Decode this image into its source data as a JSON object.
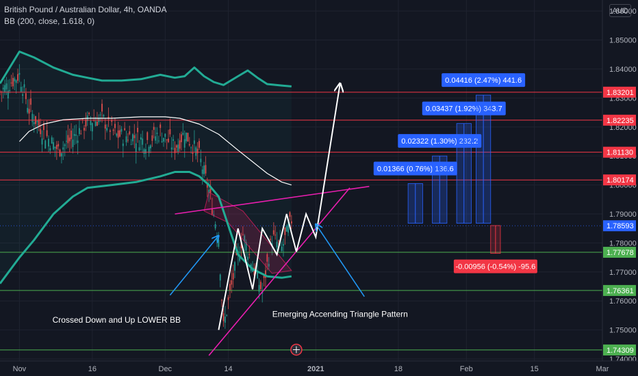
{
  "header": {
    "title": "British Pound / Australian Dollar, 4h, OANDA",
    "indicator": "BB (200, close, 1.618, 0)"
  },
  "price_axis": {
    "currency": "AUD"
  },
  "chart_data": {
    "type": "line",
    "instrument": "British Pound / Australian Dollar, 4h, OANDA",
    "indicator": "BB (200, close, 1.618, 0)",
    "y_ticks": [
      1.86,
      1.85,
      1.84,
      1.83,
      1.82,
      1.81,
      1.8,
      1.79,
      1.78,
      1.77,
      1.76,
      1.75,
      1.74
    ],
    "y_tick_labels": [
      "1.86000",
      "1.85000",
      "1.84000",
      "1.83000",
      "1.82000",
      "1.81000",
      "1.80000",
      "1.79000",
      "1.78000",
      "1.77000",
      "1.76000",
      "1.75000",
      "1.74000"
    ],
    "ylim": [
      1.7393,
      1.8638
    ],
    "x_ticks": [
      {
        "label": "Nov",
        "date": "2020-11-01"
      },
      {
        "label": "16",
        "date": "2020-11-16"
      },
      {
        "label": "Dec",
        "date": "2020-12-01"
      },
      {
        "label": "14",
        "date": "2020-12-14"
      },
      {
        "label": "2021",
        "date": "2021-01-01"
      },
      {
        "label": "18",
        "date": "2021-01-18"
      },
      {
        "label": "Feb",
        "date": "2021-02-01"
      },
      {
        "label": "15",
        "date": "2021-02-15"
      },
      {
        "label": "Mar",
        "date": "2021-03-01"
      }
    ],
    "xlim": [
      "2020-10-28",
      "2021-03-01"
    ],
    "grid": true,
    "current_price": {
      "value": 1.78593,
      "label": "1.78593",
      "color": "#2962ff"
    },
    "horizontal_levels": [
      {
        "value": 1.83201,
        "label": "1.83201",
        "color": "#f23645"
      },
      {
        "value": 1.82235,
        "label": "1.82235",
        "color": "#f23645"
      },
      {
        "value": 1.8113,
        "label": "1.81130",
        "color": "#f23645"
      },
      {
        "value": 1.80174,
        "label": "1.80174",
        "color": "#f23645"
      },
      {
        "value": 1.77678,
        "label": "1.77678",
        "color": "#4caf50"
      },
      {
        "value": 1.76361,
        "label": "1.76361",
        "color": "#4caf50"
      },
      {
        "value": 1.74309,
        "label": "1.74309",
        "color": "#4caf50"
      }
    ],
    "series": [
      {
        "color": "#22ab94",
        "points": [
          [
            "2020-10-28",
            1.835
          ],
          [
            "2020-11-01",
            1.846
          ],
          [
            "2020-11-04",
            1.844
          ],
          [
            "2020-11-08",
            1.8405
          ],
          [
            "2020-11-12",
            1.838
          ],
          [
            "2020-11-15",
            1.837
          ],
          [
            "2020-11-18",
            1.836
          ],
          [
            "2020-11-22",
            1.836
          ],
          [
            "2020-11-26",
            1.8365
          ],
          [
            "2020-11-30",
            1.838
          ],
          [
            "2020-12-03",
            1.837
          ],
          [
            "2020-12-05",
            1.8375
          ],
          [
            "2020-12-07",
            1.8405
          ],
          [
            "2020-12-09",
            1.8375
          ],
          [
            "2020-12-11",
            1.8355
          ],
          [
            "2020-12-13",
            1.8345
          ],
          [
            "2020-12-16",
            1.8375
          ],
          [
            "2020-12-18",
            1.8395
          ],
          [
            "2020-12-20",
            1.837
          ],
          [
            "2020-12-22",
            1.8348
          ],
          [
            "2020-12-25",
            1.8343
          ],
          [
            "2020-12-27",
            1.834
          ]
        ]
      },
      {
        "color": "#ffffff",
        "points": [
          [
            "2020-11-01",
            1.815
          ],
          [
            "2020-11-03",
            1.8185
          ],
          [
            "2020-11-06",
            1.821
          ],
          [
            "2020-11-10",
            1.8225
          ],
          [
            "2020-11-15",
            1.823
          ],
          [
            "2020-11-20",
            1.823
          ],
          [
            "2020-11-26",
            1.8235
          ],
          [
            "2020-12-01",
            1.8235
          ],
          [
            "2020-12-04",
            1.823
          ],
          [
            "2020-12-08",
            1.821
          ],
          [
            "2020-12-12",
            1.8175
          ],
          [
            "2020-12-16",
            1.812
          ],
          [
            "2020-12-19",
            1.808
          ],
          [
            "2020-12-22",
            1.804
          ],
          [
            "2020-12-25",
            1.801
          ],
          [
            "2020-12-27",
            1.8
          ]
        ]
      },
      {
        "color": "#22ab94",
        "points": [
          [
            "2020-10-28",
            1.766
          ],
          [
            "2020-11-01",
            1.775
          ],
          [
            "2020-11-04",
            1.781
          ],
          [
            "2020-11-08",
            1.79
          ],
          [
            "2020-11-12",
            1.796
          ],
          [
            "2020-11-15",
            1.799
          ],
          [
            "2020-11-20",
            1.8
          ],
          [
            "2020-11-25",
            1.801
          ],
          [
            "2020-11-30",
            1.803
          ],
          [
            "2020-12-03",
            1.8045
          ],
          [
            "2020-12-06",
            1.8045
          ],
          [
            "2020-12-08",
            1.803
          ],
          [
            "2020-12-10",
            1.8
          ],
          [
            "2020-12-12",
            1.796
          ],
          [
            "2020-12-14",
            1.786
          ],
          [
            "2020-12-16",
            1.776
          ],
          [
            "2020-12-19",
            1.771
          ],
          [
            "2020-12-22",
            1.7685
          ],
          [
            "2020-12-25",
            1.768
          ],
          [
            "2020-12-27",
            1.7685
          ]
        ]
      }
    ],
    "drawn_path": {
      "color": "#ffffff",
      "points": [
        [
          "2020-12-12",
          1.75
        ],
        [
          "2020-12-16",
          1.785
        ],
        [
          "2020-12-19",
          1.764
        ],
        [
          "2020-12-21",
          1.785
        ],
        [
          "2020-12-24",
          1.776
        ],
        [
          "2020-12-26",
          1.79
        ],
        [
          "2020-12-28",
          1.777
        ],
        [
          "2020-12-30",
          1.79
        ],
        [
          "2021-01-01",
          1.782
        ],
        [
          "2021-01-06",
          1.835
        ]
      ]
    },
    "trendlines": [
      {
        "color": "#e91eaf",
        "from": [
          "2020-12-03",
          1.79
        ],
        "to": [
          "2021-01-12",
          1.7995
        ]
      },
      {
        "color": "#e91eaf",
        "from": [
          "2020-12-10",
          1.7412
        ],
        "to": [
          "2021-01-08",
          1.799
        ]
      }
    ],
    "arrows": [
      {
        "color": "#2196f3",
        "from": [
          "2020-12-02",
          1.762
        ],
        "to": [
          "2020-12-12",
          1.7825
        ]
      },
      {
        "color": "#2196f3",
        "from": [
          "2021-01-11",
          1.7615
        ],
        "to": [
          "2021-01-01",
          1.7865
        ]
      }
    ],
    "annotations": [
      {
        "text": "Crossed Down and Up LOWER BB",
        "at": [
          "2020-11-21",
          1.7525
        ]
      },
      {
        "text": "Emerging Accending Triangle Pattern",
        "at": [
          "2021-01-06",
          1.7545
        ]
      }
    ],
    "measurements": [
      {
        "label": "0.01366 (0.76%) 136.6",
        "from_date": "2021-01-20",
        "to_date": "2021-01-23",
        "base": 1.7868,
        "top": 1.8005,
        "color": "#2962ff"
      },
      {
        "label": "0.02322 (1.30%) 232.2",
        "from_date": "2021-01-25",
        "to_date": "2021-01-28",
        "base": 1.7868,
        "top": 1.81,
        "color": "#2962ff"
      },
      {
        "label": "0.03437 (1.92%) 343.7",
        "from_date": "2021-01-30",
        "to_date": "2021-02-02",
        "base": 1.7868,
        "top": 1.8212,
        "color": "#2962ff"
      },
      {
        "label": "0.04416 (2.47%) 441.6",
        "from_date": "2021-02-03",
        "to_date": "2021-02-06",
        "base": 1.7868,
        "top": 1.831,
        "color": "#2962ff"
      },
      {
        "label": "-0.00956 (-0.54%) -95.6",
        "from_date": "2021-02-06",
        "to_date": "2021-02-08",
        "base": 1.786,
        "top": 1.7764,
        "color": "#f23645"
      }
    ]
  }
}
